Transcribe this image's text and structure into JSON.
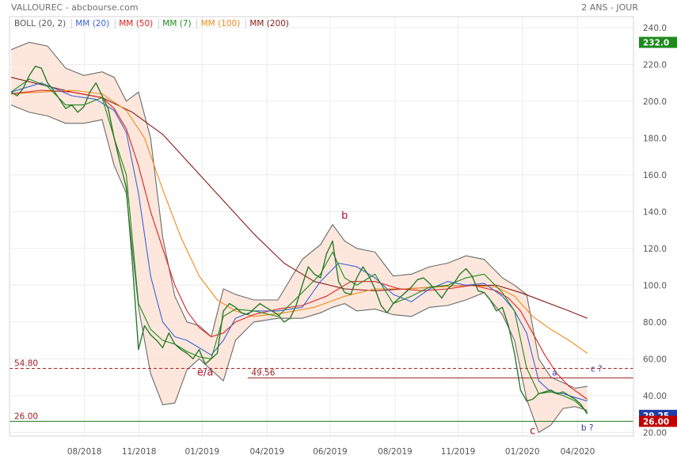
{
  "header": {
    "title": "VALLOUREC - abcbourse.com",
    "period": "2 ANS - JOUR"
  },
  "legend": [
    {
      "label": "BOLL (20, 2)",
      "color": "#555555"
    },
    {
      "label": "MM (20)",
      "color": "#3a63d8"
    },
    {
      "label": "MM (50)",
      "color": "#e02020"
    },
    {
      "label": "MM (7)",
      "color": "#1e8a1e"
    },
    {
      "label": "MM (100)",
      "color": "#f08a1a"
    },
    {
      "label": "MM (200)",
      "color": "#8a1a1a"
    }
  ],
  "chart_data": {
    "type": "line",
    "title": "VALLOUREC - abcbourse.com",
    "period": "2 ANS - JOUR",
    "x_ticks": [
      "08/2018",
      "11/2018",
      "01/2019",
      "04/2019",
      "06/2019",
      "08/2019",
      "11/2019",
      "01/2020",
      "04/2020"
    ],
    "y_ticks": [
      "20.00",
      "40.00",
      "60.00",
      "80.00",
      "100.0",
      "120.0",
      "140.0",
      "160.0",
      "180.0",
      "200.0",
      "220.0",
      "240.0"
    ],
    "y_tick_values": [
      20,
      40,
      60,
      80,
      100,
      120,
      140,
      160,
      180,
      200,
      220,
      240
    ],
    "ylim": [
      18,
      246
    ],
    "x_range": [
      0,
      100
    ],
    "grid": true,
    "price_labels": [
      {
        "text": "232.0",
        "value": 232,
        "color": "#1e8a1e"
      },
      {
        "text": "29.25",
        "value": 29.25,
        "color": "#1f3fa8"
      },
      {
        "text": "26.00",
        "value": 26,
        "color": "#c00000"
      }
    ],
    "levels": [
      {
        "value": 54.8,
        "label": "54.80",
        "style": "dashed",
        "color": "#b02020"
      },
      {
        "value": 49.56,
        "label": "49.56",
        "style": "solid",
        "color": "#9a2020"
      },
      {
        "value": 26.0,
        "label": "26.00",
        "style": "solid",
        "color": "#1e7a1e"
      }
    ],
    "annotations": [
      {
        "text": "e/a",
        "x": 32.0,
        "y": 51,
        "color": "#b0102a"
      },
      {
        "text": "b",
        "x": 55.0,
        "y": 136,
        "color": "#b0102a"
      },
      {
        "text": "c",
        "x": 86.0,
        "y": 19,
        "color": "#b0102a"
      },
      {
        "text": "a",
        "x": 89.6,
        "y": 51,
        "color": "#2a3a9a"
      },
      {
        "text": "c ?",
        "x": 96.5,
        "y": 53,
        "color": "#2a3a9a"
      },
      {
        "text": "b ?",
        "x": 95.0,
        "y": 21,
        "color": "#2a3a9a"
      }
    ],
    "series": [
      {
        "name": "Cours",
        "color": "#2a7a2a",
        "x": [
          0,
          1,
          2,
          3,
          4,
          5,
          6,
          7,
          8,
          9,
          10,
          11,
          12,
          13,
          14,
          15,
          16,
          17,
          18,
          19,
          20,
          21,
          22,
          23,
          24,
          25,
          26,
          27,
          28,
          29,
          30,
          31,
          32,
          33,
          34,
          35,
          36,
          37,
          38,
          39,
          40,
          41,
          42,
          43,
          44,
          45,
          46,
          47,
          48,
          49,
          50,
          51,
          52,
          53,
          54,
          55,
          56,
          57,
          58,
          59,
          60,
          61,
          62,
          63,
          64,
          65,
          66,
          67,
          68,
          69,
          70,
          71,
          72,
          73,
          74,
          75,
          76,
          77,
          78,
          79,
          80,
          81,
          82,
          83,
          84,
          85,
          86,
          87,
          88,
          89,
          90,
          91,
          92,
          93,
          94,
          95
        ],
        "values": [
          205,
          203,
          207,
          214,
          219,
          218,
          210,
          206,
          201,
          196,
          198,
          194,
          197,
          205,
          210,
          203,
          196,
          180,
          166,
          153,
          112,
          65,
          78,
          73,
          70,
          66,
          74,
          68,
          65,
          63,
          60,
          65,
          57,
          60,
          63,
          86,
          90,
          88,
          85,
          84,
          87,
          90,
          88,
          86,
          84,
          80,
          82,
          89,
          100,
          110,
          106,
          104,
          117,
          124,
          102,
          96,
          95,
          104,
          110,
          105,
          98,
          89,
          85,
          90,
          93,
          96,
          99,
          103,
          104,
          101,
          97,
          93,
          98,
          101,
          106,
          109,
          105,
          97,
          96,
          92,
          86,
          88,
          78,
          63,
          43,
          37,
          38,
          41,
          42,
          43,
          41,
          42,
          40,
          38,
          35,
          30
        ]
      },
      {
        "name": "MM (20)",
        "color": "#3a63d8",
        "x": [
          0,
          5,
          10,
          14,
          17,
          19,
          21,
          23,
          25,
          27,
          29,
          31,
          33,
          35,
          37,
          40,
          44,
          48,
          51,
          54,
          57,
          60,
          63,
          66,
          69,
          72,
          75,
          78,
          81,
          83,
          85,
          87,
          89,
          91,
          93,
          95
        ],
        "values": [
          205,
          210,
          203,
          201,
          195,
          183,
          150,
          105,
          80,
          72,
          70,
          66,
          62,
          70,
          82,
          86,
          86,
          88,
          102,
          112,
          110,
          104,
          95,
          91,
          98,
          102,
          100,
          101,
          94,
          86,
          74,
          48,
          42,
          41,
          39,
          37
        ]
      },
      {
        "name": "MM (50)",
        "color": "#e02020",
        "x": [
          0,
          5,
          10,
          15,
          17,
          19,
          21,
          23,
          25,
          27,
          29,
          31,
          33,
          35,
          37,
          40,
          44,
          48,
          52,
          56,
          60,
          64,
          68,
          72,
          76,
          80,
          82,
          84,
          86,
          88,
          90,
          92,
          95
        ],
        "values": [
          204,
          206,
          205,
          202,
          196,
          185,
          165,
          140,
          120,
          100,
          86,
          77,
          72,
          74,
          80,
          84,
          87,
          89,
          94,
          102,
          102,
          98,
          97,
          98,
          100,
          97,
          93,
          86,
          74,
          62,
          52,
          45,
          38
        ]
      },
      {
        "name": "MM (7)",
        "color": "#1e8a1e",
        "x": [
          0,
          3,
          6,
          9,
          12,
          15,
          17,
          19,
          21,
          23,
          25,
          27,
          29,
          31,
          33,
          35,
          37,
          40,
          44,
          48,
          51,
          53,
          55,
          57,
          60,
          63,
          66,
          69,
          72,
          75,
          78,
          81,
          83,
          85,
          87,
          89,
          91,
          93,
          95
        ],
        "values": [
          205,
          212,
          208,
          198,
          198,
          202,
          180,
          160,
          90,
          76,
          70,
          68,
          64,
          61,
          60,
          83,
          87,
          86,
          83,
          96,
          106,
          118,
          104,
          100,
          106,
          90,
          94,
          99,
          100,
          104,
          106,
          96,
          86,
          55,
          41,
          42,
          40,
          37,
          31
        ]
      },
      {
        "name": "MM (100)",
        "color": "#f08a1a",
        "x": [
          0,
          5,
          10,
          15,
          19,
          22,
          25,
          28,
          31,
          34,
          37,
          40,
          45,
          50,
          55,
          60,
          65,
          70,
          75,
          80,
          83,
          86,
          89,
          92,
          95
        ],
        "values": [
          204,
          205,
          206,
          204,
          195,
          180,
          152,
          126,
          105,
          92,
          86,
          83,
          85,
          88,
          94,
          98,
          98,
          99,
          100,
          99,
          94,
          83,
          76,
          70,
          63
        ]
      },
      {
        "name": "MM (200)",
        "color": "#8a1a1a",
        "x": [
          0,
          5,
          10,
          15,
          20,
          25,
          30,
          35,
          40,
          45,
          50,
          55,
          60,
          65,
          70,
          75,
          80,
          84,
          88,
          92,
          95
        ],
        "values": [
          213,
          209,
          205,
          202,
          194,
          182,
          164,
          146,
          128,
          112,
          102,
          98,
          97,
          98,
          99,
          100,
          100,
          96,
          91,
          86,
          82
        ]
      },
      {
        "name": "BOLL sup",
        "color": "#6a6a6a",
        "x": [
          0,
          3,
          6,
          9,
          12,
          15,
          17,
          19,
          21,
          23,
          25,
          27,
          29,
          31,
          33,
          35,
          37,
          40,
          44,
          48,
          51,
          53,
          55,
          57,
          60,
          63,
          66,
          69,
          72,
          75,
          78,
          81,
          83,
          85,
          87,
          89,
          91,
          93,
          95
        ],
        "values": [
          228,
          232,
          230,
          218,
          214,
          216,
          213,
          200,
          205,
          180,
          126,
          94,
          80,
          78,
          72,
          98,
          95,
          92,
          92,
          114,
          122,
          133,
          124,
          120,
          118,
          105,
          106,
          110,
          112,
          116,
          114,
          104,
          100,
          95,
          60,
          50,
          47,
          44,
          45
        ]
      },
      {
        "name": "BOLL inf",
        "color": "#6a6a6a",
        "x": [
          0,
          3,
          6,
          9,
          12,
          15,
          17,
          19,
          21,
          23,
          25,
          27,
          29,
          31,
          33,
          35,
          37,
          40,
          44,
          48,
          51,
          53,
          55,
          57,
          60,
          63,
          66,
          69,
          72,
          75,
          78,
          81,
          83,
          85,
          87,
          89,
          91,
          93,
          95
        ],
        "values": [
          198,
          194,
          192,
          188,
          188,
          190,
          165,
          150,
          88,
          52,
          35,
          36,
          54,
          60,
          54,
          48,
          70,
          80,
          82,
          82,
          85,
          88,
          90,
          86,
          87,
          84,
          83,
          88,
          89,
          92,
          96,
          84,
          70,
          38,
          20,
          24,
          33,
          34,
          32
        ]
      }
    ]
  }
}
